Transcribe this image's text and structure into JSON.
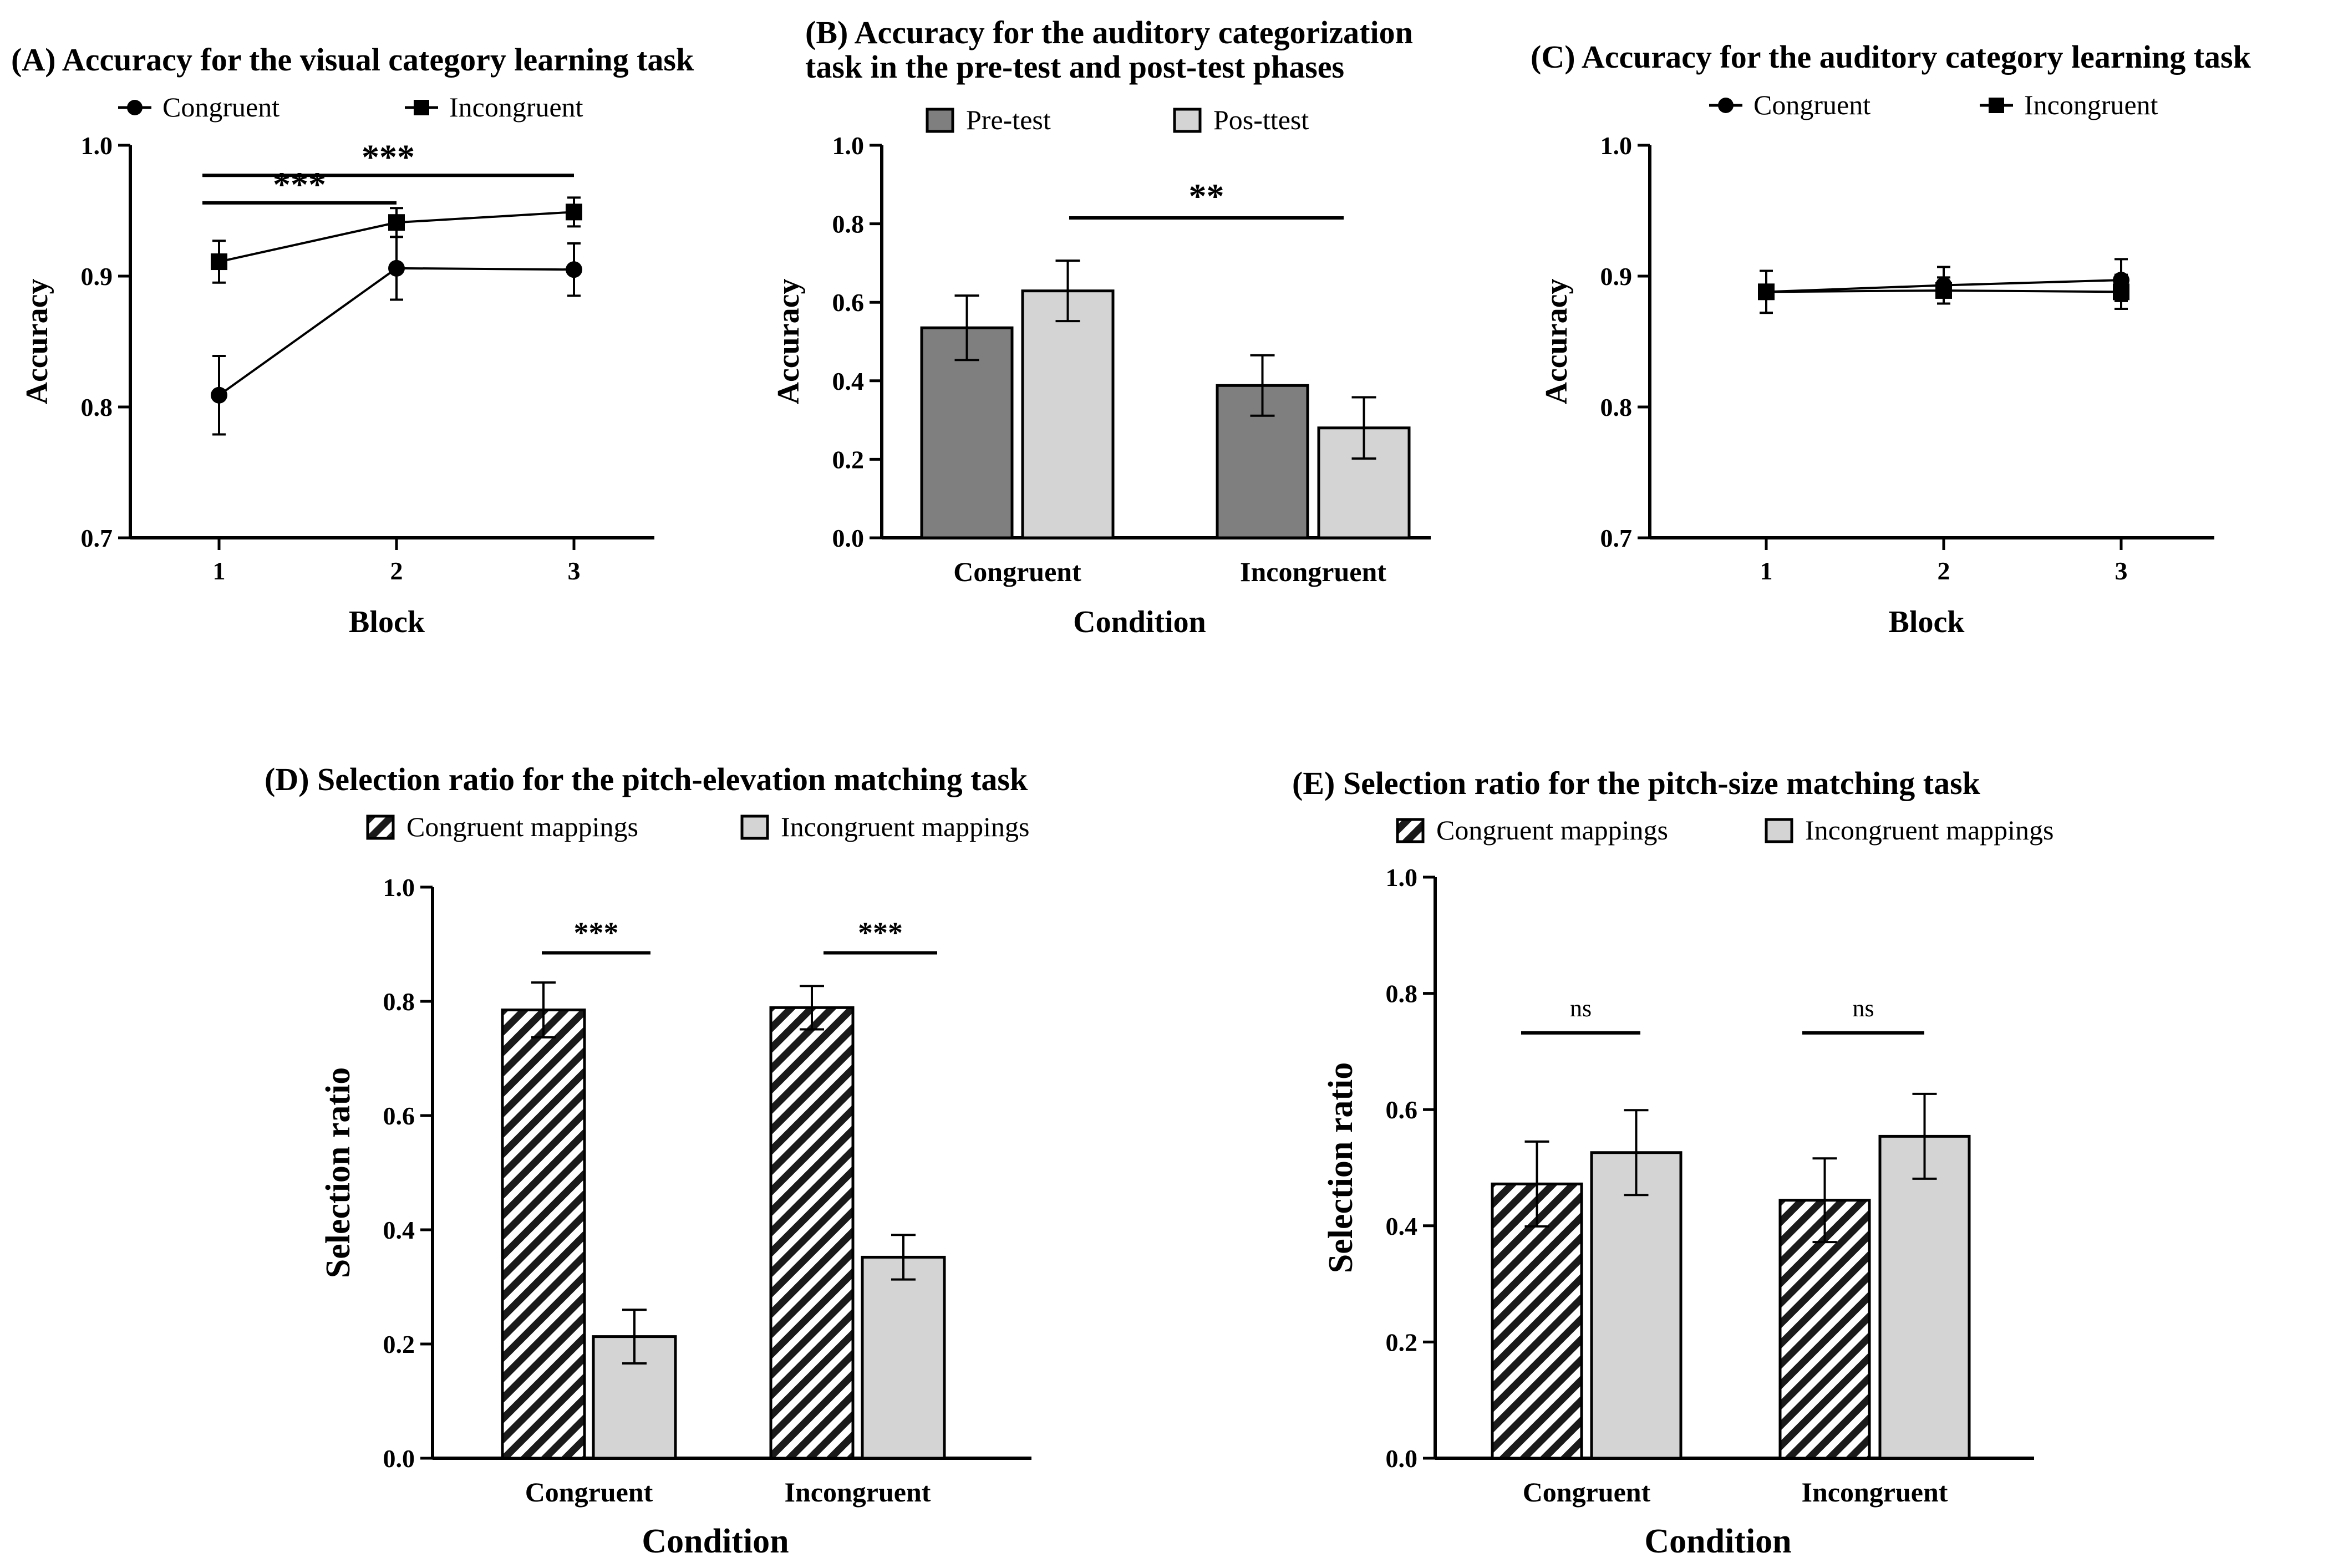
{
  "chart_data": [
    {
      "id": "A",
      "type": "line",
      "title": "(A)  Accuracy for the visual category learning task",
      "xlabel": "Block",
      "ylabel": "Accuracy",
      "ylim": [
        0.7,
        1.0
      ],
      "yticks": [
        "0.7",
        "0.8",
        "0.9",
        "1.0"
      ],
      "categories": [
        "1",
        "2",
        "3"
      ],
      "series": [
        {
          "name": "Congruent",
          "marker": "circle",
          "values": [
            0.809,
            0.906,
            0.905
          ],
          "errors": [
            0.03,
            0.024,
            0.02
          ]
        },
        {
          "name": "Incongruent",
          "marker": "square",
          "values": [
            0.911,
            0.941,
            0.949
          ],
          "errors": [
            0.016,
            0.011,
            0.011
          ]
        }
      ],
      "annotations": [
        {
          "label": "***",
          "from": "1",
          "to": "3",
          "y": 0.977
        },
        {
          "label": "***",
          "from": "1",
          "to": "2",
          "y": 0.956
        }
      ]
    },
    {
      "id": "B",
      "type": "bar",
      "title": [
        "(B) Accuracy for the auditory categorization",
        "task in the pre-test and post-test phases"
      ],
      "xlabel": "Condition",
      "ylabel": "Accuracy",
      "ylim": [
        0.0,
        1.0
      ],
      "yticks": [
        "0.0",
        "0.2",
        "0.4",
        "0.6",
        "0.8",
        "1.0"
      ],
      "categories": [
        "Congruent",
        "Incongruent"
      ],
      "series": [
        {
          "name": "Pre-test",
          "color": "#7f7f7f",
          "values": [
            0.535,
            0.388
          ],
          "errors": [
            0.082,
            0.077
          ]
        },
        {
          "name": "Pos-ttest",
          "color": "#d4d4d4",
          "values": [
            0.629,
            0.28
          ],
          "errors": [
            0.077,
            0.078
          ]
        }
      ],
      "annotations": [
        {
          "label": "**",
          "y": 0.815
        }
      ]
    },
    {
      "id": "C",
      "type": "line",
      "title": "(C) Accuracy for the auditory category learning task",
      "xlabel": "Block",
      "ylabel": "Accuracy",
      "ylim": [
        0.7,
        1.0
      ],
      "yticks": [
        "0.7",
        "0.8",
        "0.9",
        "1.0"
      ],
      "categories": [
        "1",
        "2",
        "3"
      ],
      "series": [
        {
          "name": "Congruent",
          "marker": "circle",
          "values": [
            0.888,
            0.893,
            0.897
          ],
          "errors": [
            0.016,
            0.014,
            0.016
          ]
        },
        {
          "name": "Incongruent",
          "marker": "square",
          "values": [
            0.888,
            0.889,
            0.888
          ],
          "errors": [
            0.016,
            0.01,
            0.013
          ]
        }
      ]
    },
    {
      "id": "D",
      "type": "bar",
      "title": "(D)  Selection ratio for the pitch-elevation matching task",
      "xlabel": "Condition",
      "ylabel": "Selection ratio",
      "ylim": [
        0.0,
        1.0
      ],
      "yticks": [
        "0.0",
        "0.2",
        "0.4",
        "0.6",
        "0.8",
        "1.0"
      ],
      "categories": [
        "Congruent",
        "Incongruent"
      ],
      "series": [
        {
          "name": "Congruent mappings",
          "pattern": "hatch",
          "values": [
            0.785,
            0.789
          ],
          "errors": [
            0.048,
            0.038
          ]
        },
        {
          "name": "Incongruent mappings",
          "color": "#d4d4d4",
          "values": [
            0.213,
            0.352
          ],
          "errors": [
            0.047,
            0.039
          ]
        }
      ],
      "annotations": [
        {
          "label": "***",
          "category": "Congruent",
          "y": 0.885
        },
        {
          "label": "***",
          "category": "Incongruent",
          "y": 0.885
        }
      ]
    },
    {
      "id": "E",
      "type": "bar",
      "title": "(E)  Selection ratio for the pitch-size matching task",
      "xlabel": "Condition",
      "ylabel": "Selection ratio",
      "ylim": [
        0.0,
        1.0
      ],
      "yticks": [
        "0.0",
        "0.2",
        "0.4",
        "0.6",
        "0.8",
        "1.0"
      ],
      "categories": [
        "Congruent",
        "Incongruent"
      ],
      "series": [
        {
          "name": "Congruent mappings",
          "pattern": "hatch",
          "values": [
            0.472,
            0.444
          ],
          "errors": [
            0.073,
            0.072
          ]
        },
        {
          "name": "Incongruent mappings",
          "color": "#d4d4d4",
          "values": [
            0.526,
            0.554
          ],
          "errors": [
            0.073,
            0.073
          ]
        }
      ],
      "annotations": [
        {
          "label": "ns",
          "category": "Congruent",
          "y": 0.732
        },
        {
          "label": "ns",
          "category": "Incongruent",
          "y": 0.732
        }
      ]
    }
  ]
}
